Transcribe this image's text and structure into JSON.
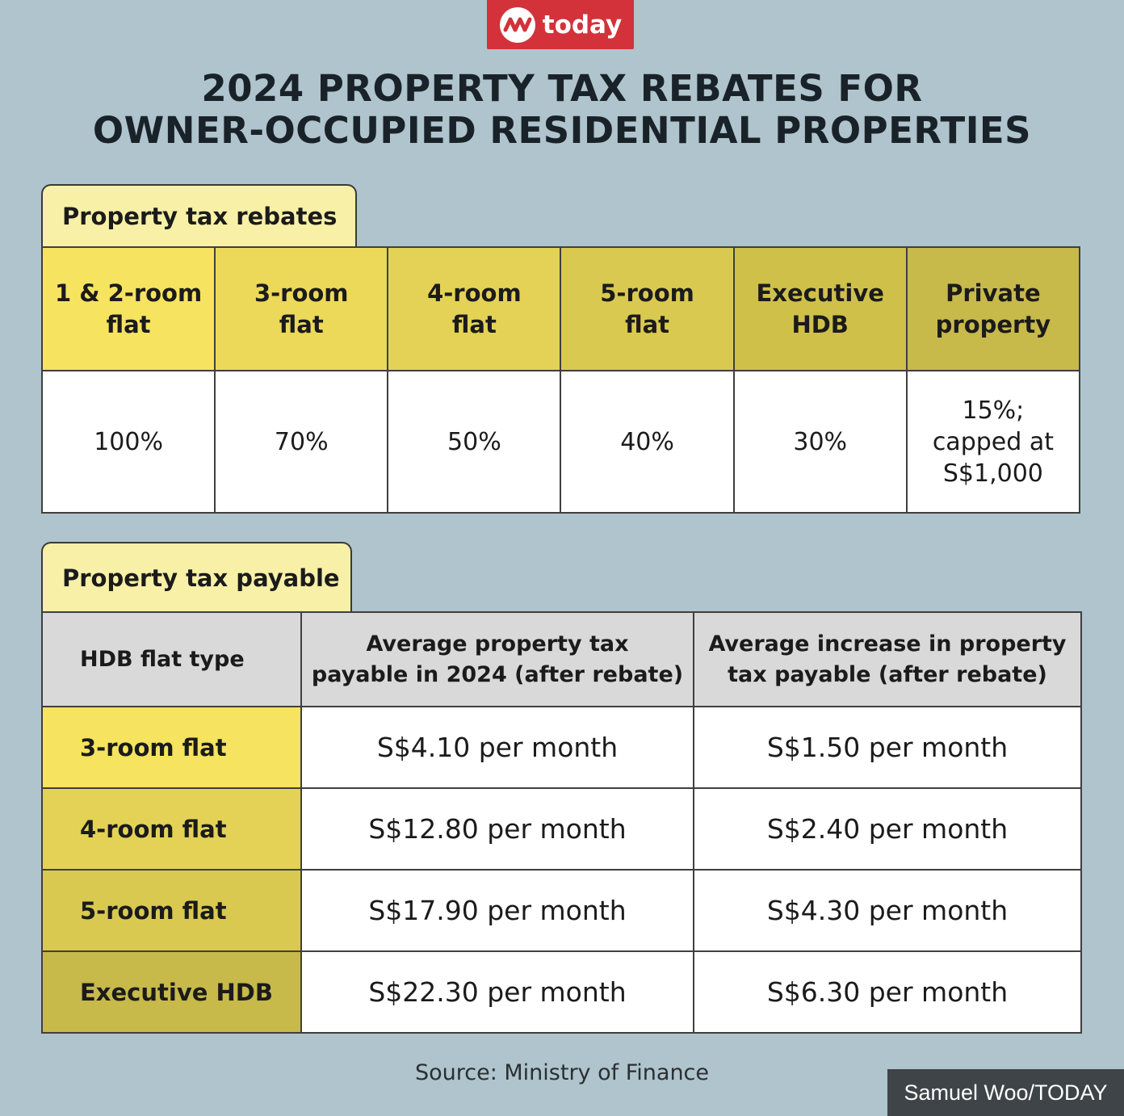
{
  "logo": {
    "text": "today"
  },
  "title": {
    "line1": "2024 PROPERTY TAX REBATES FOR",
    "line2": "OWNER-OCCUPIED RESIDENTIAL PROPERTIES"
  },
  "colors": {
    "background": "#afc4cc",
    "logo_red": "#d3323a",
    "tab_fill": "#f7f0a6",
    "header_gray": "#d9d9d9",
    "credit_bg": "#3f4448",
    "yellow_scale": [
      "#f6e35f",
      "#ecd959",
      "#e3d256",
      "#d9c950",
      "#cfc04a",
      "#c7b94a"
    ]
  },
  "chart_data": [
    {
      "type": "table",
      "title": "Property tax rebates",
      "columns": [
        "1 & 2-room flat",
        "3-room flat",
        "4-room flat",
        "5-room flat",
        "Executive HDB",
        "Private property"
      ],
      "columns_display": [
        [
          "1 & 2-room",
          "flat"
        ],
        [
          "3-room",
          "flat"
        ],
        [
          "4-room",
          "flat"
        ],
        [
          "5-room",
          "flat"
        ],
        [
          "Executive",
          "HDB"
        ],
        [
          "Private",
          "property"
        ]
      ],
      "values": [
        "100%",
        "70%",
        "50%",
        "40%",
        "30%",
        "15%; capped at S$1,000"
      ],
      "values_display": [
        [
          "100%"
        ],
        [
          "70%"
        ],
        [
          "50%"
        ],
        [
          "40%"
        ],
        [
          "30%"
        ],
        [
          "15%;",
          "capped at",
          "S$1,000"
        ]
      ]
    },
    {
      "type": "table",
      "title": "Property tax payable",
      "columns": [
        "HDB flat type",
        "Average property tax payable in 2024 (after rebate)",
        "Average increase in property tax payable (after rebate)"
      ],
      "columns_display": [
        [
          "HDB flat type"
        ],
        [
          "Average property tax",
          "payable in 2024 (after rebate)"
        ],
        [
          "Average increase in property",
          "tax payable (after rebate)"
        ]
      ],
      "rows": [
        [
          "3-room flat",
          "S$4.10 per month",
          "S$1.50 per month"
        ],
        [
          "4-room flat",
          "S$12.80 per month",
          "S$2.40 per month"
        ],
        [
          "5-room flat",
          "S$17.90 per month",
          "S$4.30 per month"
        ],
        [
          "Executive HDB",
          "S$22.30 per month",
          "S$6.30 per month"
        ]
      ]
    }
  ],
  "source": "Source: Ministry of Finance",
  "credit": "Samuel Woo/TODAY"
}
